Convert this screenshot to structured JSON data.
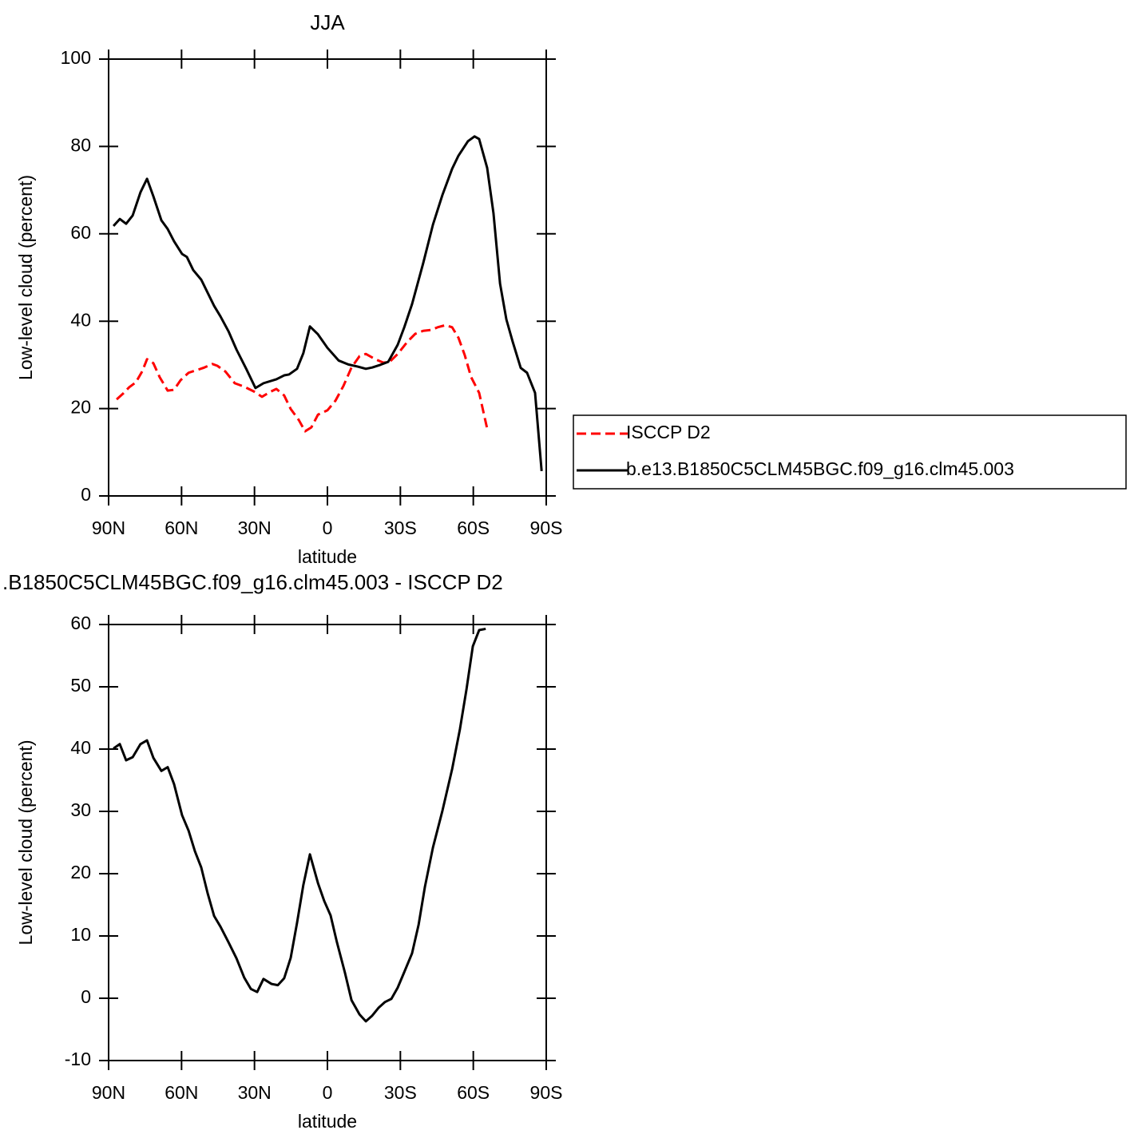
{
  "chart_data": [
    {
      "type": "line",
      "title": "JJA",
      "xlabel": "latitude",
      "ylabel": "Low-level cloud (percent)",
      "xlim": [
        90,
        -90
      ],
      "xticks": [
        {
          "value": 90,
          "label": "90N"
        },
        {
          "value": 60,
          "label": "60N"
        },
        {
          "value": 30,
          "label": "30N"
        },
        0,
        {
          "value": -30,
          "label": "30S"
        },
        {
          "value": -60,
          "label": "60S"
        },
        {
          "value": -90,
          "label": "90S"
        }
      ],
      "ylim": [
        0,
        100
      ],
      "yticks": [
        0,
        20,
        40,
        60,
        80,
        100
      ],
      "legend": "right",
      "series": [
        {
          "name": "ISCCP D2",
          "color": "#ff0000",
          "dashed": true,
          "x": [
            86.7,
            84.1,
            81.5,
            78.8,
            76.2,
            74.2,
            71.6,
            69.0,
            65.7,
            63.1,
            60.4,
            57.1,
            53.2,
            50.6,
            47.3,
            45.3,
            42.0,
            38.1,
            34.2,
            30.2,
            26.9,
            23.6,
            21.0,
            17.8,
            15.1,
            11.8,
            9.2,
            6.6,
            3.9,
            0.0,
            -3.3,
            -6.6,
            -9.9,
            -13.2,
            -15.8,
            -19.7,
            -23.0,
            -25.6,
            -28.9,
            -32.9,
            -36.1,
            -39.4,
            -42.7,
            -45.3,
            -48.6,
            -51.3,
            -53.9,
            -56.5,
            -59.1,
            -62.4,
            -65.7
          ],
          "values": [
            22.1,
            23.4,
            24.9,
            26.0,
            28.5,
            31.3,
            30.4,
            27.2,
            24.1,
            24.3,
            26.5,
            28.2,
            28.9,
            29.4,
            30.2,
            29.8,
            28.5,
            25.8,
            25.0,
            23.9,
            22.7,
            23.8,
            24.5,
            23.0,
            19.9,
            17.4,
            14.8,
            15.7,
            18.6,
            19.6,
            21.8,
            25.2,
            29.4,
            32.0,
            32.5,
            31.3,
            30.5,
            30.7,
            32.5,
            35.3,
            37.1,
            37.8,
            38.0,
            38.6,
            39.1,
            38.6,
            36.2,
            32.2,
            27.2,
            23.6,
            15.4
          ]
        },
        {
          "name": "b.e13.B1850C5CLM45BGC.f09_g16.clm45.003",
          "color": "#000000",
          "dashed": false,
          "x": [
            88.0,
            85.4,
            82.8,
            80.1,
            76.9,
            74.2,
            71.6,
            68.3,
            65.7,
            63.1,
            59.8,
            57.8,
            55.2,
            51.9,
            46.6,
            44.0,
            40.7,
            37.4,
            33.4,
            29.6,
            26.3,
            21.0,
            17.8,
            15.8,
            12.5,
            9.9,
            7.2,
            3.9,
            0.0,
            -4.6,
            -8.6,
            -12.5,
            -15.8,
            -18.4,
            -21.7,
            -25.0,
            -28.9,
            -31.6,
            -34.8,
            -39.4,
            -43.4,
            -47.3,
            -51.3,
            -53.9,
            -57.8,
            -60.5,
            -62.4,
            -65.7,
            -68.3,
            -71.0,
            -73.6,
            -76.2,
            -79.5,
            -82.1,
            -85.4,
            -88.1
          ],
          "values": [
            61.8,
            63.4,
            62.3,
            64.2,
            69.5,
            72.6,
            68.6,
            63.1,
            61.1,
            58.3,
            55.4,
            54.7,
            51.7,
            49.5,
            43.5,
            41.1,
            37.7,
            33.5,
            29.1,
            24.7,
            25.8,
            26.7,
            27.6,
            27.8,
            29.1,
            32.7,
            38.8,
            37.0,
            33.9,
            31.0,
            30.1,
            29.6,
            29.1,
            29.4,
            30.0,
            30.7,
            34.6,
            38.6,
            43.9,
            53.3,
            62.1,
            68.9,
            74.9,
            77.9,
            81.2,
            82.3,
            81.7,
            75.1,
            64.7,
            48.6,
            40.4,
            35.3,
            29.3,
            28.2,
            23.6,
            5.7
          ]
        }
      ]
    },
    {
      "type": "line",
      "title": ".B1850C5CLM45BGC.f09_g16.clm45.003 - ISCCP D2",
      "xlabel": "latitude",
      "ylabel": "Low-level cloud (percent)",
      "xlim": [
        90,
        -90
      ],
      "xticks": [
        {
          "value": 90,
          "label": "90N"
        },
        {
          "value": 60,
          "label": "60N"
        },
        {
          "value": 30,
          "label": "30N"
        },
        0,
        {
          "value": -30,
          "label": "30S"
        },
        {
          "value": -60,
          "label": "60S"
        },
        {
          "value": -90,
          "label": "90S"
        }
      ],
      "ylim": [
        -10,
        60
      ],
      "yticks": [
        -10,
        0,
        10,
        20,
        30,
        40,
        50,
        60
      ],
      "series": [
        {
          "color": "#000000",
          "dashed": false,
          "x": [
            88.0,
            85.4,
            82.8,
            80.1,
            76.9,
            74.2,
            71.6,
            68.3,
            65.7,
            63.1,
            59.8,
            57.1,
            54.5,
            51.9,
            49.3,
            46.6,
            44.0,
            40.7,
            37.4,
            34.2,
            31.5,
            28.9,
            26.3,
            23.0,
            20.4,
            17.8,
            15.1,
            12.5,
            9.9,
            7.2,
            3.9,
            1.3,
            -1.3,
            -3.9,
            -7.2,
            -9.9,
            -13.2,
            -15.8,
            -18.4,
            -21.1,
            -23.7,
            -26.3,
            -28.9,
            -31.6,
            -34.8,
            -37.5,
            -40.1,
            -43.4,
            -47.3,
            -51.3,
            -54.5,
            -57.2,
            -59.8,
            -62.4,
            -65.1
          ],
          "values": [
            40.1,
            40.8,
            38.2,
            38.7,
            40.8,
            41.4,
            38.6,
            36.5,
            37.1,
            34.4,
            29.4,
            26.9,
            23.6,
            21.0,
            16.9,
            13.2,
            11.5,
            9.0,
            6.4,
            3.3,
            1.5,
            1.0,
            3.1,
            2.3,
            2.1,
            3.2,
            6.5,
            12.1,
            18.2,
            23.1,
            18.5,
            15.6,
            13.3,
            9.0,
            4.1,
            -0.3,
            -2.6,
            -3.7,
            -2.8,
            -1.5,
            -0.6,
            -0.1,
            1.7,
            4.2,
            7.2,
            11.8,
            17.9,
            24.2,
            30.1,
            36.8,
            43.2,
            49.6,
            56.5,
            59.1,
            59.3
          ]
        }
      ]
    }
  ]
}
